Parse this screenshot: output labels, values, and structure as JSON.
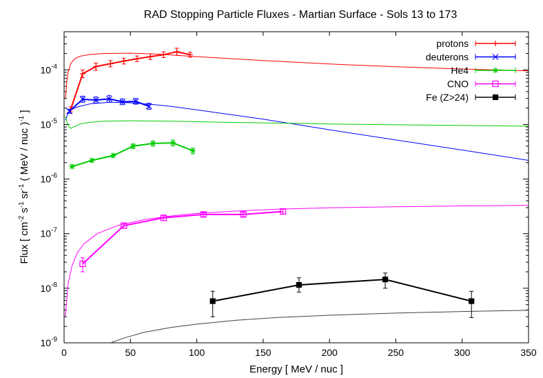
{
  "chart_data": {
    "type": "scatter",
    "title": "RAD Stopping Particle Fluxes - Martian Surface - Sols 13 to 173",
    "xlabel": "Energy [ MeV / nuc ]",
    "ylabel": {
      "prefix": "Flux [ cm",
      "sup1": "-2",
      "mid1": " s",
      "sup2": "-1",
      "mid2": " sr",
      "sup3": "-1",
      "mid3": " ( MeV / nuc )",
      "sup4": "-1",
      "suffix": " ]"
    },
    "xlim": [
      0,
      350
    ],
    "ylim": [
      1e-09,
      0.0005
    ],
    "yscale": "log",
    "x_ticks": [
      0,
      50,
      100,
      150,
      200,
      250,
      300,
      350
    ],
    "y_ticks": [
      {
        "value": 1e-09,
        "base": "10",
        "exp": "-9"
      },
      {
        "value": 1e-08,
        "base": "10",
        "exp": "-8"
      },
      {
        "value": 1e-07,
        "base": "10",
        "exp": "-7"
      },
      {
        "value": 1e-06,
        "base": "10",
        "exp": "-6"
      },
      {
        "value": 1e-05,
        "base": "10",
        "exp": "-5"
      },
      {
        "value": 0.0001,
        "base": "10",
        "exp": "-4"
      }
    ],
    "legend_position": "top-right",
    "series": [
      {
        "name": "protons",
        "color": "#ff0000",
        "marker": "plus",
        "x": [
          5,
          14,
          24,
          35,
          45,
          55,
          65,
          75,
          85,
          95
        ],
        "y": [
          1.9e-05,
          8.5e-05,
          0.000115,
          0.00013,
          0.000145,
          0.00016,
          0.000175,
          0.00019,
          0.000215,
          0.00019
        ],
        "yerr_low": [
          1.7e-05,
          7.2e-05,
          9.8e-05,
          0.000114,
          0.000128,
          0.000142,
          0.000155,
          0.000168,
          0.000185,
          0.00017
        ],
        "yerr_high": [
          2.1e-05,
          0.0001,
          0.000133,
          0.000148,
          0.000164,
          0.00018,
          0.000197,
          0.000214,
          0.00025,
          0.00021
        ],
        "model": {
          "x": [
            1,
            2,
            3,
            5,
            8,
            12,
            20,
            30,
            50,
            70,
            100,
            150,
            200,
            250,
            300,
            350
          ],
          "y": [
            3e-05,
            6e-05,
            9e-05,
            0.00013,
            0.00016,
            0.000178,
            0.000192,
            0.0002,
            0.000202,
            0.000195,
            0.000175,
            0.000148,
            0.000128,
            0.000114,
            0.000104,
            9.6e-05
          ]
        }
      },
      {
        "name": "deuterons",
        "color": "#0000ff",
        "marker": "cross",
        "x": [
          4,
          14,
          24,
          34,
          44,
          54,
          64
        ],
        "y": [
          1.75e-05,
          2.9e-05,
          2.8e-05,
          2.95e-05,
          2.6e-05,
          2.65e-05,
          2.15e-05
        ],
        "yerr_low": [
          1.6e-05,
          2.55e-05,
          2.45e-05,
          2.55e-05,
          2.3e-05,
          2.35e-05,
          1.9e-05
        ],
        "yerr_high": [
          1.9e-05,
          3.3e-05,
          3.2e-05,
          3.4e-05,
          2.95e-05,
          3e-05,
          2.45e-05
        ],
        "model": {
          "x": [
            1,
            3,
            6,
            10,
            20,
            35,
            50,
            65,
            80,
            100,
            150,
            200,
            250,
            300,
            350
          ],
          "y": [
            1.2e-05,
            1.6e-05,
            1.9e-05,
            2.1e-05,
            2.4e-05,
            2.55e-05,
            2.5e-05,
            2.35e-05,
            2.15e-05,
            1.85e-05,
            1.25e-05,
            8e-06,
            5.2e-06,
            3.4e-06,
            2.2e-06
          ]
        }
      },
      {
        "name": "He4",
        "color": "#00cc00",
        "marker": "star",
        "x": [
          6,
          21,
          37,
          52,
          67,
          82,
          97
        ],
        "y": [
          1.7e-06,
          2.2e-06,
          2.7e-06,
          4e-06,
          4.5e-06,
          4.6e-06,
          3.3e-06
        ],
        "yerr_low": [
          1.6e-06,
          2.05e-06,
          2.5e-06,
          3.6e-06,
          4e-06,
          4.05e-06,
          2.9e-06
        ],
        "yerr_high": [
          1.8e-06,
          2.35e-06,
          2.9e-06,
          4.4e-06,
          5e-06,
          5.2e-06,
          3.7e-06
        ],
        "model": {
          "x": [
            1,
            3,
            5,
            8,
            12,
            20,
            30,
            50,
            80,
            120,
            200,
            280,
            350
          ],
          "y": [
            1.4e-05,
            9.5e-06,
            8.5e-06,
            9.2e-06,
            1.02e-05,
            1.1e-05,
            1.15e-05,
            1.17e-05,
            1.15e-05,
            1.1e-05,
            1.02e-05,
            9.7e-06,
            9.3e-06
          ]
        }
      },
      {
        "name": "CNO",
        "color": "#ff00ff",
        "marker": "square-open",
        "x": [
          14,
          45,
          75,
          105,
          135,
          165
        ],
        "y": [
          2.8e-08,
          1.4e-07,
          1.95e-07,
          2.25e-07,
          2.25e-07,
          2.55e-07
        ],
        "yerr_low": [
          2e-08,
          1.25e-07,
          1.75e-07,
          2.05e-07,
          2.05e-07,
          2.3e-07
        ],
        "yerr_high": [
          3.6e-08,
          1.55e-07,
          2.15e-07,
          2.45e-07,
          2.45e-07,
          2.8e-07
        ],
        "model": {
          "x": [
            1,
            3,
            6,
            10,
            15,
            25,
            40,
            60,
            80,
            100,
            130,
            160,
            200,
            250,
            300,
            350
          ],
          "y": [
            3e-09,
            1.2e-08,
            2.6e-08,
            4.5e-08,
            6.5e-08,
            1e-07,
            1.4e-07,
            1.8e-07,
            2.1e-07,
            2.35e-07,
            2.6e-07,
            2.8e-07,
            2.98e-07,
            3.1e-07,
            3.22e-07,
            3.3e-07
          ]
        }
      },
      {
        "name": "Fe (Z>24)",
        "color": "#000000",
        "marker": "square-filled",
        "x": [
          112,
          177,
          242,
          307
        ],
        "y": [
          5.8e-09,
          1.15e-08,
          1.45e-08,
          5.8e-09
        ],
        "yerr_low": [
          3e-09,
          8.5e-09,
          1e-08,
          2.9e-09
        ],
        "yerr_high": [
          8.8e-09,
          1.55e-08,
          1.9e-08,
          8.8e-09
        ],
        "model": {
          "x": [
            35,
            45,
            60,
            80,
            100,
            130,
            160,
            200,
            250,
            300,
            350
          ],
          "y": [
            1e-09,
            1.22e-09,
            1.55e-09,
            1.9e-09,
            2.2e-09,
            2.6e-09,
            2.9e-09,
            3.2e-09,
            3.5e-09,
            3.75e-09,
            3.95e-09
          ],
          "color": "#404040"
        }
      }
    ]
  }
}
